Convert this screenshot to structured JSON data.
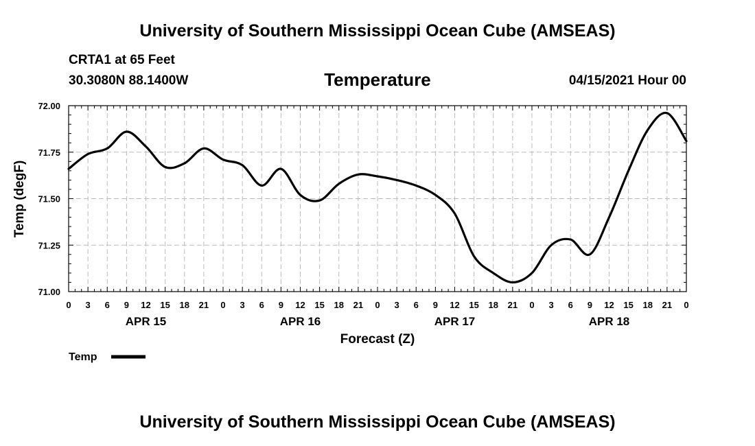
{
  "header": {
    "title": "University of Southern Mississippi Ocean Cube (AMSEAS)",
    "station": "CRTA1 at 65 Feet",
    "coordinates": "30.3080N  88.1400W",
    "variable": "Temperature",
    "forecast_time": "04/15/2021 Hour 00"
  },
  "footer": {
    "title": "University of Southern Mississippi Ocean Cube (AMSEAS)"
  },
  "chart_data": {
    "type": "line",
    "title": "Temperature",
    "xlabel": "Forecast (Z)",
    "ylabel": "Temp (degF)",
    "xlim": [
      0,
      96
    ],
    "ylim": [
      71.0,
      72.0
    ],
    "grid": true,
    "line_color": "#000000",
    "grid_color": "#bbbbbb",
    "x_tick_labels": [
      "0",
      "3",
      "6",
      "9",
      "12",
      "15",
      "18",
      "21",
      "0",
      "3",
      "6",
      "9",
      "12",
      "15",
      "18",
      "21",
      "0",
      "3",
      "6",
      "9",
      "12",
      "15",
      "18",
      "21",
      "0",
      "3",
      "6",
      "9",
      "12",
      "15",
      "18",
      "21",
      "0"
    ],
    "y_ticks": [
      71.0,
      71.25,
      71.5,
      71.75,
      72.0
    ],
    "y_tick_labels": [
      "71.00",
      "71.25",
      "71.50",
      "71.75",
      "72.00"
    ],
    "day_labels": [
      {
        "label": "APR 15",
        "hour": 12
      },
      {
        "label": "APR 16",
        "hour": 36
      },
      {
        "label": "APR 17",
        "hour": 60
      },
      {
        "label": "APR 18",
        "hour": 84
      }
    ],
    "legend": [
      {
        "name": "Temp",
        "location": "bottom-left"
      }
    ],
    "series": [
      {
        "name": "Temp",
        "x": [
          0,
          3,
          6,
          9,
          12,
          15,
          18,
          21,
          24,
          27,
          30,
          33,
          36,
          39,
          42,
          45,
          48,
          51,
          54,
          57,
          60,
          63,
          66,
          69,
          72,
          75,
          78,
          81,
          84,
          87,
          90,
          93,
          96
        ],
        "values": [
          71.66,
          71.74,
          71.77,
          71.86,
          71.78,
          71.67,
          71.69,
          71.77,
          71.71,
          71.68,
          71.57,
          71.66,
          71.52,
          71.49,
          71.58,
          71.63,
          71.62,
          71.6,
          71.57,
          71.52,
          71.42,
          71.19,
          71.1,
          71.05,
          71.1,
          71.25,
          71.28,
          71.2,
          71.4,
          71.65,
          71.87,
          71.96,
          71.81
        ]
      }
    ]
  }
}
